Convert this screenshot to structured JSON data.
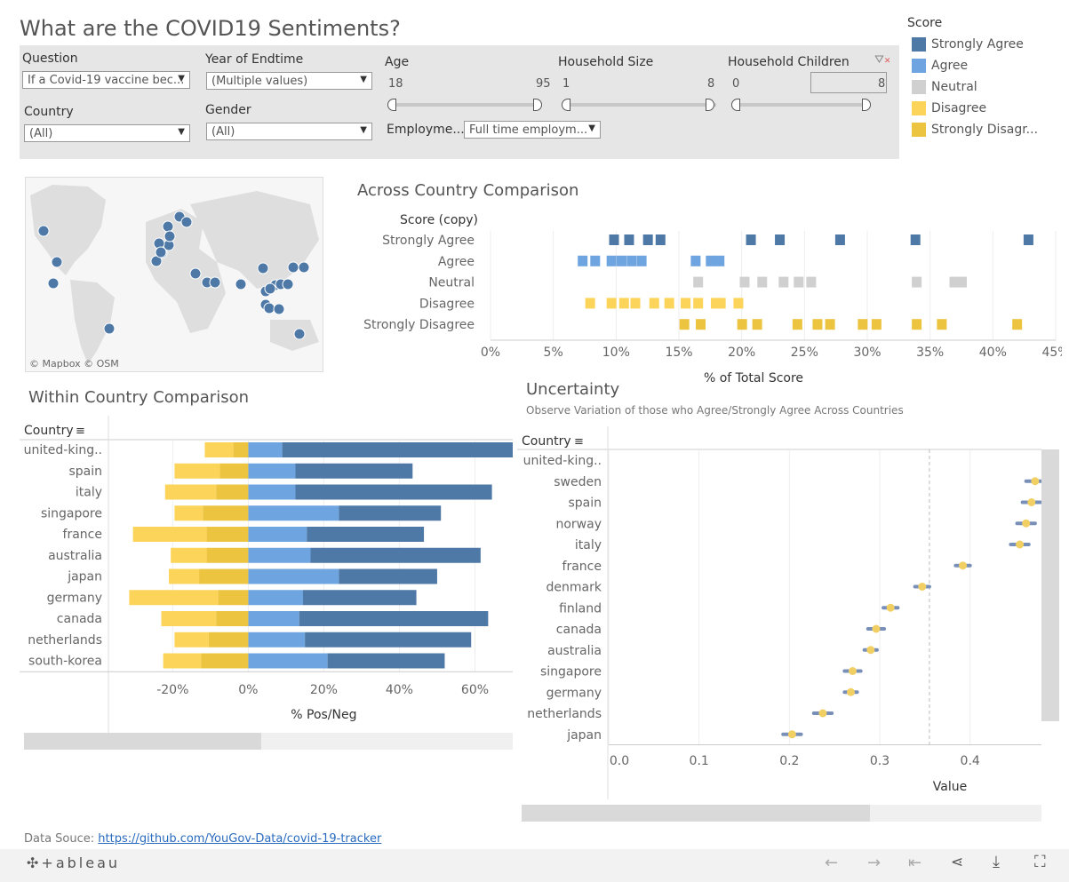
{
  "title": "What are the COVID19 Sentiments?",
  "colors": {
    "strongly_agree": "#4e79a7",
    "agree": "#6ea4df",
    "neutral": "#d0d0d0",
    "disagree": "#fcd45a",
    "strongly_disagree": "#ecc440",
    "dot": "#4e79a7"
  },
  "filters": {
    "question": {
      "label": "Question",
      "value": "If a Covid-19 vaccine bec..."
    },
    "year": {
      "label": "Year of Endtime",
      "value": "(Multiple values)"
    },
    "country": {
      "label": "Country",
      "value": "(All)"
    },
    "gender": {
      "label": "Gender",
      "value": "(All)"
    },
    "age": {
      "label": "Age",
      "min": "18",
      "max": "95"
    },
    "household_size": {
      "label": "Household Size",
      "min": "1",
      "max": "8"
    },
    "household_children": {
      "label": "Household Children",
      "min": "0",
      "max": "8"
    },
    "employment": {
      "label": "Employme...",
      "value": "Full time employm..."
    }
  },
  "legend": {
    "title": "Score",
    "items": [
      {
        "label": "Strongly Agree",
        "color": "#4e79a7"
      },
      {
        "label": "Agree",
        "color": "#6ea4df"
      },
      {
        "label": "Neutral",
        "color": "#d0d0d0"
      },
      {
        "label": "Disagree",
        "color": "#fcd45a"
      },
      {
        "label": "Strongly Disagr...",
        "color": "#ecc440"
      }
    ]
  },
  "map": {
    "attribution": "© Mapbox  © OSM"
  },
  "chart_data": [
    {
      "type": "scatter",
      "title": "Across Country Comparison",
      "row_header": "Score (copy)",
      "xlabel": "% of Total Score",
      "xlim": [
        0,
        45
      ],
      "xticks": [
        "0%",
        "5%",
        "10%",
        "15%",
        "20%",
        "25%",
        "30%",
        "35%",
        "40%",
        "45%"
      ],
      "rows": [
        {
          "name": "Strongly Agree",
          "color": "#4e79a7",
          "values": [
            9.8,
            11.0,
            12.5,
            13.5,
            20.7,
            23.0,
            27.8,
            33.8,
            42.8
          ]
        },
        {
          "name": "Agree",
          "color": "#6ea4df",
          "values": [
            7.3,
            8.3,
            9.6,
            10.4,
            11.2,
            12.0,
            16.3,
            17.5,
            18.2
          ]
        },
        {
          "name": "Neutral",
          "color": "#d0d0d0",
          "values": [
            16.5,
            20.2,
            21.6,
            23.3,
            24.5,
            25.5,
            33.9,
            36.9,
            37.5
          ]
        },
        {
          "name": "Disagree",
          "color": "#fcd45a",
          "values": [
            7.9,
            9.6,
            10.6,
            11.5,
            13.0,
            14.2,
            15.5,
            16.5,
            17.9,
            18.3,
            19.7
          ]
        },
        {
          "name": "Strongly Disagree",
          "color": "#ecc440",
          "values": [
            15.4,
            16.7,
            20.0,
            21.2,
            24.4,
            26.0,
            27.0,
            29.6,
            30.7,
            33.9,
            35.9,
            41.9
          ]
        }
      ]
    },
    {
      "type": "bar",
      "title": "Within Country Comparison",
      "row_header": "Country",
      "xlabel": "% Pos/Neg",
      "xlim": [
        -37,
        70
      ],
      "xticks": [
        "-20%",
        "0%",
        "20%",
        "40%",
        "60%"
      ],
      "categories": [
        "united-king..",
        "spain",
        "italy",
        "singapore",
        "france",
        "australia",
        "japan",
        "germany",
        "canada",
        "netherlands",
        "south-korea"
      ],
      "series": [
        {
          "name": "Strongly Agree",
          "values": [
            61,
            31,
            52,
            27,
            31,
            45,
            26,
            30,
            50,
            44,
            31
          ]
        },
        {
          "name": "Agree",
          "values": [
            9,
            12.5,
            12.5,
            24,
            15.5,
            16.5,
            24,
            14.5,
            13.5,
            15,
            21
          ]
        },
        {
          "name": "Disagree",
          "values": [
            -4,
            -7.5,
            -8.5,
            -12,
            -11,
            -11,
            -13,
            -8,
            -8.5,
            -10.5,
            -12.5
          ]
        },
        {
          "name": "Strongly Disagree",
          "values": [
            -7.5,
            -12,
            -13.5,
            -7.5,
            -19.5,
            -9.5,
            -8,
            -23.5,
            -14.5,
            -9,
            -10
          ]
        }
      ]
    },
    {
      "type": "scatter",
      "title": "Uncertainty",
      "subtitle": "Observe Variation of those who Agree/Strongly Agree Across Countries",
      "row_header": "Country",
      "xlabel": "Value",
      "xlim": [
        0,
        0.48
      ],
      "xticks": [
        "0.0",
        "0.1",
        "0.2",
        "0.3",
        "0.4"
      ],
      "reference_line": 0.355,
      "categories": [
        "united-king..",
        "sweden",
        "spain",
        "norway",
        "italy",
        "france",
        "denmark",
        "finland",
        "canada",
        "australia",
        "singapore",
        "germany",
        "netherlands",
        "japan"
      ],
      "values": [
        null,
        0.472,
        0.468,
        0.462,
        0.455,
        0.392,
        0.347,
        0.312,
        0.296,
        0.29,
        0.27,
        0.268,
        0.237,
        0.203
      ],
      "ci": [
        null,
        0.01,
        0.01,
        0.01,
        0.01,
        0.008,
        0.008,
        0.008,
        0.009,
        0.007,
        0.009,
        0.007,
        0.01,
        0.01
      ]
    }
  ],
  "footer": {
    "source_label": "Data Souce: ",
    "source_link": "https://github.com/YouGov-Data/covid-19-tracker",
    "logo": "+ableau"
  }
}
